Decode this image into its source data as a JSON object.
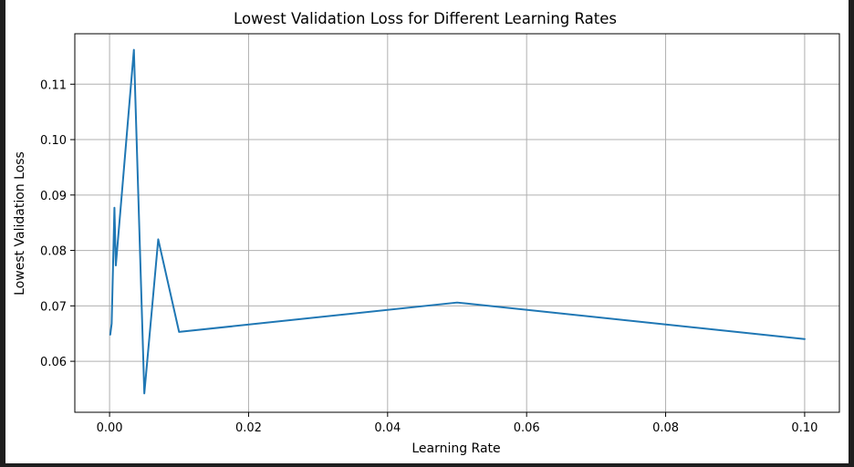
{
  "chart_data": {
    "type": "line",
    "title": "Lowest Validation Loss for Different Learning Rates",
    "xlabel": "Learning Rate",
    "ylabel": "Lowest Validation Loss",
    "xlim": [
      -0.005,
      0.105
    ],
    "ylim": [
      0.0508,
      0.1191
    ],
    "grid": true,
    "line_color": "#1f77b4",
    "x_ticks": [
      0.0,
      0.02,
      0.04,
      0.06,
      0.08,
      0.1
    ],
    "x_tick_labels": [
      "0.00",
      "0.02",
      "0.04",
      "0.06",
      "0.08",
      "0.10"
    ],
    "y_ticks": [
      0.06,
      0.07,
      0.08,
      0.09,
      0.1,
      0.11
    ],
    "y_tick_labels": [
      "0.06",
      "0.07",
      "0.08",
      "0.09",
      "0.10",
      "0.11"
    ],
    "series": [
      {
        "x": [
          0.0001,
          0.0003,
          0.0007,
          0.0009,
          0.0035,
          0.005,
          0.007,
          0.01,
          0.05,
          0.1
        ],
        "y": [
          0.0648,
          0.0668,
          0.0877,
          0.0773,
          0.1162,
          0.0542,
          0.082,
          0.0653,
          0.0706,
          0.064
        ]
      }
    ]
  }
}
